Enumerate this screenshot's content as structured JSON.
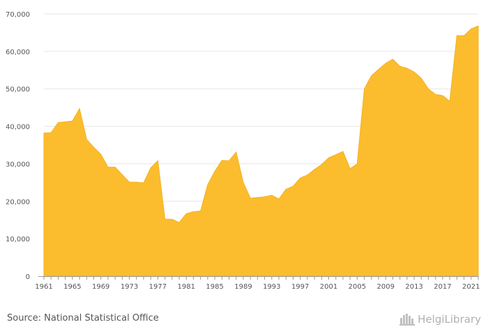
{
  "chart_data": {
    "type": "area",
    "title": "",
    "xlabel": "",
    "ylabel": "",
    "ylim": [
      0,
      70000
    ],
    "yticks": [
      0,
      10000,
      20000,
      30000,
      40000,
      50000,
      60000,
      70000
    ],
    "ytick_labels": [
      "0",
      "10,000",
      "20,000",
      "30,000",
      "40,000",
      "50,000",
      "60,000",
      "70,000"
    ],
    "xticks": [
      1961,
      1965,
      1969,
      1973,
      1977,
      1981,
      1985,
      1989,
      1993,
      1997,
      2001,
      2005,
      2009,
      2013,
      2017,
      2021
    ],
    "grid": true,
    "legend": "none",
    "fill_color": "#FBBD2E",
    "x": [
      1961,
      1962,
      1963,
      1964,
      1965,
      1966,
      1967,
      1968,
      1969,
      1970,
      1971,
      1972,
      1973,
      1974,
      1975,
      1976,
      1977,
      1978,
      1979,
      1980,
      1981,
      1982,
      1983,
      1984,
      1985,
      1986,
      1987,
      1988,
      1989,
      1990,
      1991,
      1992,
      1993,
      1994,
      1995,
      1996,
      1997,
      1998,
      1999,
      2000,
      2001,
      2002,
      2003,
      2004,
      2005,
      2006,
      2007,
      2008,
      2009,
      2010,
      2011,
      2012,
      2013,
      2014,
      2015,
      2016,
      2017,
      2018,
      2019,
      2020,
      2021,
      2022
    ],
    "values": [
      38200,
      38300,
      41000,
      41200,
      41400,
      44700,
      36500,
      34400,
      32500,
      29100,
      29100,
      27100,
      25100,
      25100,
      24900,
      28900,
      30800,
      15200,
      15200,
      14300,
      16700,
      17200,
      17400,
      24400,
      28000,
      30900,
      30800,
      33100,
      25000,
      20800,
      21000,
      21200,
      21600,
      20600,
      23200,
      24000,
      26200,
      27000,
      28500,
      29800,
      31600,
      32400,
      33300,
      28700,
      30000,
      50000,
      53500,
      55200,
      56800,
      57900,
      56000,
      55500,
      54500,
      52800,
      50000,
      48500,
      48200,
      46700,
      64200,
      64200,
      66000,
      66800
    ]
  },
  "footer": {
    "source": "Source: National Statistical Office",
    "brand": "HelgiLibrary",
    "logo_icon": "helgi-building-icon"
  }
}
